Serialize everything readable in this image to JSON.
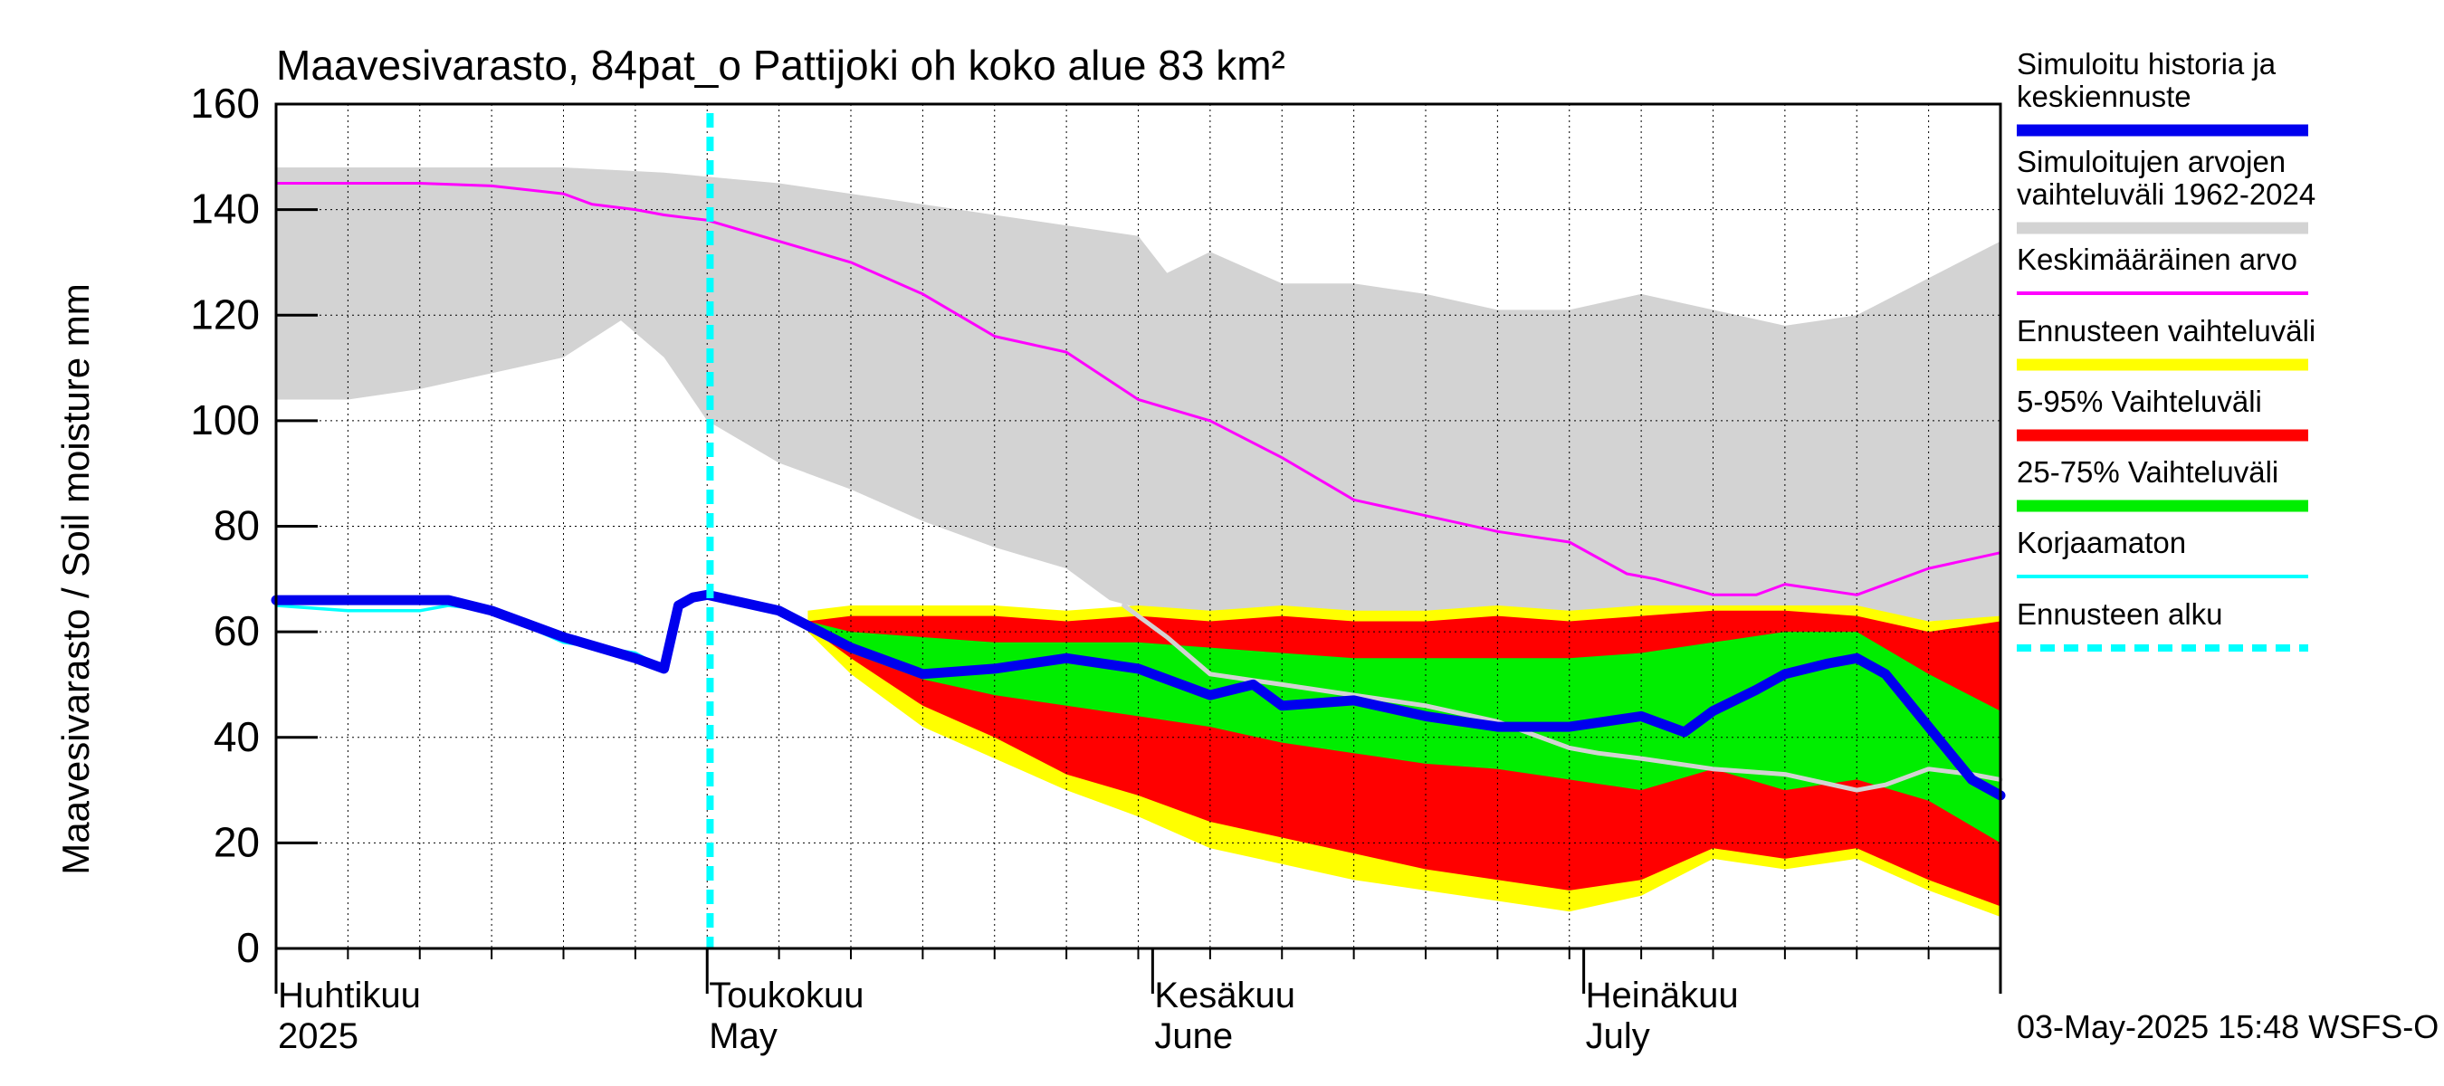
{
  "chart_data": {
    "type": "area",
    "title": "Maavesivarasto, 84pat_o Pattijoki oh koko alue 83 km²",
    "ylabel": "Maavesivarasto / Soil moisture   mm",
    "ylim": [
      0,
      160
    ],
    "yticks": [
      0,
      20,
      40,
      60,
      80,
      100,
      120,
      140,
      160
    ],
    "x_days": [
      0,
      120
    ],
    "x_unit": "days since 2025-04-01",
    "month_labels": [
      {
        "day": 0,
        "fi": "Huhtikuu",
        "en": "2025"
      },
      {
        "day": 30,
        "fi": "Toukokuu",
        "en": "May"
      },
      {
        "day": 61,
        "fi": "Kesäkuu",
        "en": "June"
      },
      {
        "day": 91,
        "fi": "Heinäkuu",
        "en": "July"
      }
    ],
    "forecast_start_day": 30.2,
    "timestamp": "03-May-2025 15:48 WSFS-O",
    "colors": {
      "history": "#0000ee",
      "range_hist": "#d3d3d3",
      "mean": "#ff00ff",
      "forecast_range": "#ffff00",
      "p5_95": "#ff0000",
      "p25_75": "#00ee00",
      "uncorrected": "#00ffff",
      "forecast_start": "#00ffff",
      "grey_line": "#d3d3d3"
    },
    "legend": [
      {
        "label": "Simuloitu historia ja keskiennuste",
        "color": "#0000ee",
        "style": "thick"
      },
      {
        "label": "Simuloitujen arvojen vaihteluväli 1962-2024",
        "color": "#d3d3d3",
        "style": "thick"
      },
      {
        "label": "Keskimääräinen arvo",
        "color": "#ff00ff",
        "style": "thin"
      },
      {
        "label": "Ennusteen vaihteluväli",
        "color": "#ffff00",
        "style": "thick"
      },
      {
        "label": "5-95% Vaihteluväli",
        "color": "#ff0000",
        "style": "thick"
      },
      {
        "label": "25-75% Vaihteluväli",
        "color": "#00ee00",
        "style": "thick"
      },
      {
        "label": "Korjaamaton",
        "color": "#00ffff",
        "style": "thin"
      },
      {
        "label": "Ennusteen alku",
        "color": "#00ffff",
        "style": "dashed"
      }
    ],
    "series": [
      {
        "name": "hist_range_upper",
        "x": [
          0,
          10,
          20,
          27,
          35,
          45,
          55,
          60,
          62,
          65,
          70,
          75,
          80,
          85,
          90,
          95,
          100,
          105,
          110,
          115,
          120
        ],
        "values": [
          148,
          148,
          148,
          147,
          145,
          141,
          137,
          135,
          128,
          132,
          126,
          126,
          124,
          121,
          121,
          124,
          121,
          118,
          120,
          127,
          134
        ]
      },
      {
        "name": "hist_range_lower",
        "x": [
          0,
          5,
          10,
          15,
          20,
          24,
          27,
          30,
          35,
          40,
          45,
          50,
          55,
          58,
          62,
          120
        ],
        "values": [
          104,
          104,
          106,
          109,
          112,
          119,
          112,
          100,
          92,
          87,
          81,
          76,
          72,
          66,
          63,
          62
        ]
      },
      {
        "name": "forecast_range_upper",
        "x": [
          37,
          40,
          45,
          50,
          55,
          60,
          65,
          70,
          75,
          80,
          85,
          90,
          95,
          100,
          105,
          110,
          115,
          120
        ],
        "values": [
          64,
          65,
          65,
          65,
          64,
          65,
          64,
          65,
          64,
          64,
          65,
          64,
          65,
          65,
          65,
          65,
          62,
          63
        ]
      },
      {
        "name": "forecast_range_lower",
        "x": [
          37,
          40,
          45,
          50,
          55,
          60,
          65,
          70,
          75,
          80,
          85,
          90,
          95,
          100,
          105,
          110,
          115,
          120
        ],
        "values": [
          60,
          52,
          42,
          36,
          30,
          25,
          19,
          16,
          13,
          11,
          9,
          7,
          10,
          17,
          15,
          17,
          11,
          6
        ]
      },
      {
        "name": "p5_95_upper",
        "x": [
          37,
          40,
          45,
          50,
          55,
          60,
          65,
          70,
          75,
          80,
          85,
          90,
          95,
          100,
          105,
          110,
          115,
          120
        ],
        "values": [
          62,
          63,
          63,
          63,
          62,
          63,
          62,
          63,
          62,
          62,
          63,
          62,
          63,
          64,
          64,
          63,
          60,
          62
        ]
      },
      {
        "name": "p5_95_lower",
        "x": [
          37,
          40,
          45,
          50,
          55,
          60,
          65,
          70,
          75,
          80,
          85,
          90,
          95,
          100,
          105,
          110,
          115,
          120
        ],
        "values": [
          61,
          55,
          46,
          40,
          33,
          29,
          24,
          21,
          18,
          15,
          13,
          11,
          13,
          19,
          17,
          19,
          13,
          8
        ]
      },
      {
        "name": "p25_75_upper",
        "x": [
          37,
          40,
          45,
          50,
          55,
          60,
          65,
          70,
          75,
          80,
          85,
          90,
          95,
          100,
          105,
          110,
          115,
          120
        ],
        "values": [
          62,
          60,
          59,
          58,
          58,
          58,
          57,
          56,
          55,
          55,
          55,
          55,
          56,
          58,
          60,
          60,
          52,
          45
        ]
      },
      {
        "name": "p25_75_lower",
        "x": [
          37,
          40,
          45,
          50,
          55,
          60,
          65,
          70,
          75,
          80,
          85,
          90,
          95,
          100,
          105,
          110,
          115,
          120
        ],
        "values": [
          61,
          56,
          51,
          48,
          46,
          44,
          42,
          39,
          37,
          35,
          34,
          32,
          30,
          34,
          30,
          32,
          28,
          20
        ]
      },
      {
        "name": "Keskimääräinen arvo",
        "x": [
          0,
          5,
          10,
          15,
          20,
          22,
          25,
          27,
          30,
          35,
          40,
          45,
          50,
          55,
          60,
          65,
          70,
          75,
          80,
          85,
          90,
          92,
          94,
          96,
          100,
          103,
          105,
          110,
          115,
          120
        ],
        "values": [
          145,
          145,
          145,
          144.5,
          143,
          141,
          140,
          139,
          138,
          134,
          130,
          124,
          116,
          113,
          104,
          100,
          93,
          85,
          82,
          79,
          77,
          74,
          71,
          70,
          67,
          67,
          69,
          67,
          72,
          75
        ]
      },
      {
        "name": "Simuloitu historia ja keskiennuste",
        "x": [
          0,
          5,
          10,
          12,
          15,
          20,
          25,
          27,
          28,
          29,
          30,
          35,
          40,
          45,
          50,
          55,
          60,
          65,
          68,
          70,
          75,
          80,
          85,
          90,
          95,
          98,
          100,
          103,
          105,
          108,
          110,
          112,
          115,
          118,
          120
        ],
        "values": [
          66,
          66,
          66,
          66,
          64,
          59,
          55,
          53,
          65,
          66.5,
          67,
          64,
          57,
          52,
          53,
          55,
          53,
          48,
          50,
          46,
          47,
          44,
          42,
          42,
          44,
          41,
          45,
          49,
          52,
          54,
          55,
          52,
          42,
          32,
          29
        ]
      },
      {
        "name": "Korjaamaton",
        "x": [
          0,
          5,
          10,
          12,
          15,
          20,
          25,
          27
        ],
        "values": [
          65,
          64,
          64,
          65,
          64,
          58,
          56,
          53
        ]
      },
      {
        "name": "grey_forecast_line",
        "x": [
          59,
          62,
          65,
          70,
          75,
          80,
          85,
          90,
          92,
          95,
          100,
          105,
          110,
          112,
          115,
          118,
          120
        ],
        "values": [
          65,
          59,
          52,
          50,
          48,
          46,
          43,
          38,
          37,
          36,
          34,
          33,
          30,
          31,
          34,
          33,
          32
        ]
      }
    ]
  }
}
